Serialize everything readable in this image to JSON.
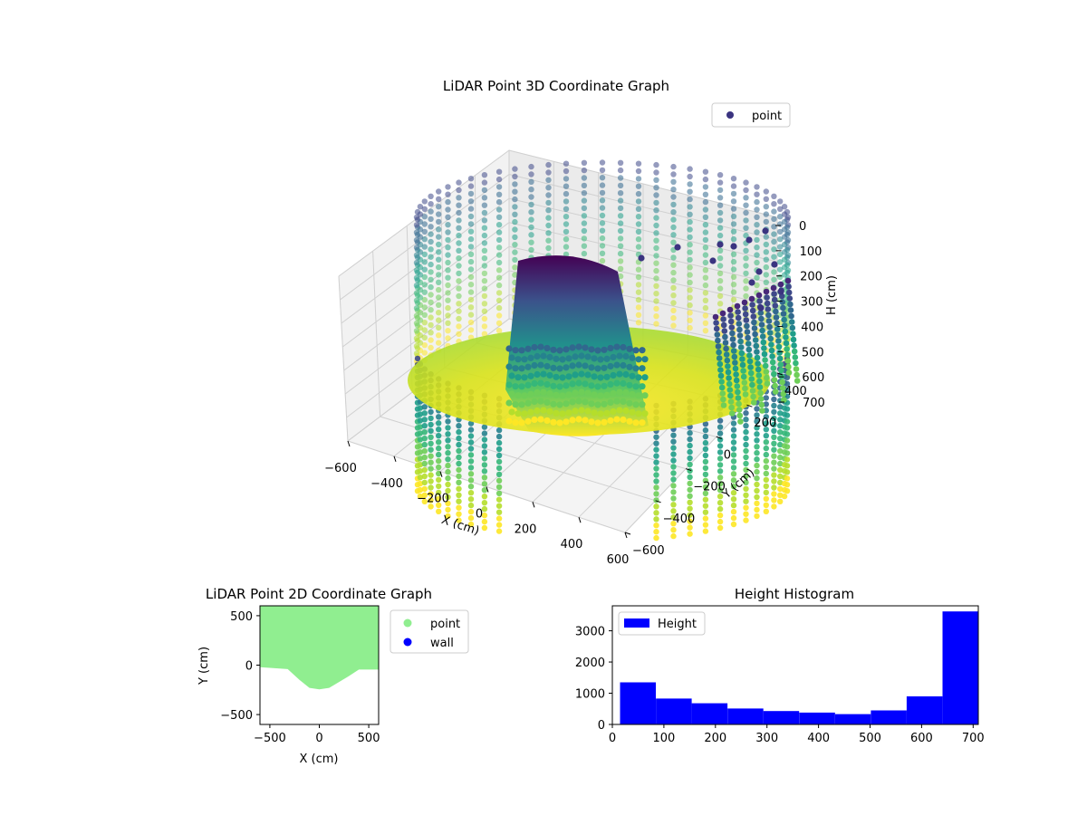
{
  "chart_data": [
    {
      "type": "scatter",
      "projection": "3d",
      "title": "LiDAR Point 3D Coordinate Graph",
      "xlabel": "X (cm)",
      "ylabel": "Y (cm)",
      "zlabel": "H (cm)",
      "xlim": [
        -600,
        600
      ],
      "ylim": [
        -600,
        600
      ],
      "zlim": [
        0,
        700
      ],
      "z_inverted": true,
      "xticks": [
        "−600",
        "−400",
        "−200",
        "0",
        "200",
        "400",
        "600"
      ],
      "yticks": [
        "−600",
        "−400",
        "−200",
        "0",
        "200",
        "400"
      ],
      "zticks": [
        "0",
        "100",
        "200",
        "300",
        "400",
        "500",
        "600",
        "700"
      ],
      "colormap": "viridis",
      "grid": true,
      "legend": {
        "placement": "upper-right",
        "entries": [
          {
            "label": "point",
            "color": "#3b3480"
          }
        ]
      },
      "features": [
        {
          "name": "outer ring",
          "radius_cm": 600,
          "h_range": [
            0,
            700
          ]
        },
        {
          "name": "central slab",
          "x_range": [
            -250,
            250
          ],
          "y": -100,
          "h_range": [
            0,
            700
          ]
        },
        {
          "name": "wall columns",
          "x_range": [
            380,
            600
          ],
          "y": -150,
          "h_range": [
            0,
            700
          ]
        }
      ]
    },
    {
      "type": "scatter",
      "title": "LiDAR Point 2D Coordinate Graph",
      "xlabel": "X (cm)",
      "ylabel": "Y (cm)",
      "xlim": [
        -600,
        600
      ],
      "ylim": [
        -600,
        600
      ],
      "xticks": [
        "−500",
        "0",
        "500"
      ],
      "yticks": [
        "−500",
        "0",
        "500"
      ],
      "series": [
        {
          "name": "point",
          "color": "#90ee90"
        },
        {
          "name": "wall",
          "color": "#0000ff"
        }
      ],
      "region_boundary": [
        [
          -600,
          -20
        ],
        [
          -320,
          -40
        ],
        [
          -200,
          -150
        ],
        [
          -100,
          -230
        ],
        [
          0,
          -245
        ],
        [
          100,
          -230
        ],
        [
          200,
          -170
        ],
        [
          300,
          -110
        ],
        [
          400,
          -45
        ],
        [
          600,
          -45
        ]
      ],
      "legend": {
        "placement": "outside-right"
      }
    },
    {
      "type": "bar",
      "subtype": "histogram",
      "title": "Height Histogram",
      "xlim": [
        0,
        710
      ],
      "ylim": [
        0,
        3800
      ],
      "xticks": [
        "0",
        "100",
        "200",
        "300",
        "400",
        "500",
        "600",
        "700"
      ],
      "yticks": [
        "0",
        "1000",
        "2000",
        "3000"
      ],
      "bin_edges": [
        15,
        84.5,
        154,
        223.5,
        293,
        362.5,
        432,
        501.5,
        571,
        640.5,
        710
      ],
      "values": [
        1350,
        830,
        680,
        510,
        430,
        380,
        330,
        450,
        900,
        3620
      ],
      "series": [
        {
          "name": "Height",
          "color": "#0000ff"
        }
      ],
      "legend": {
        "placement": "upper-left"
      }
    }
  ]
}
